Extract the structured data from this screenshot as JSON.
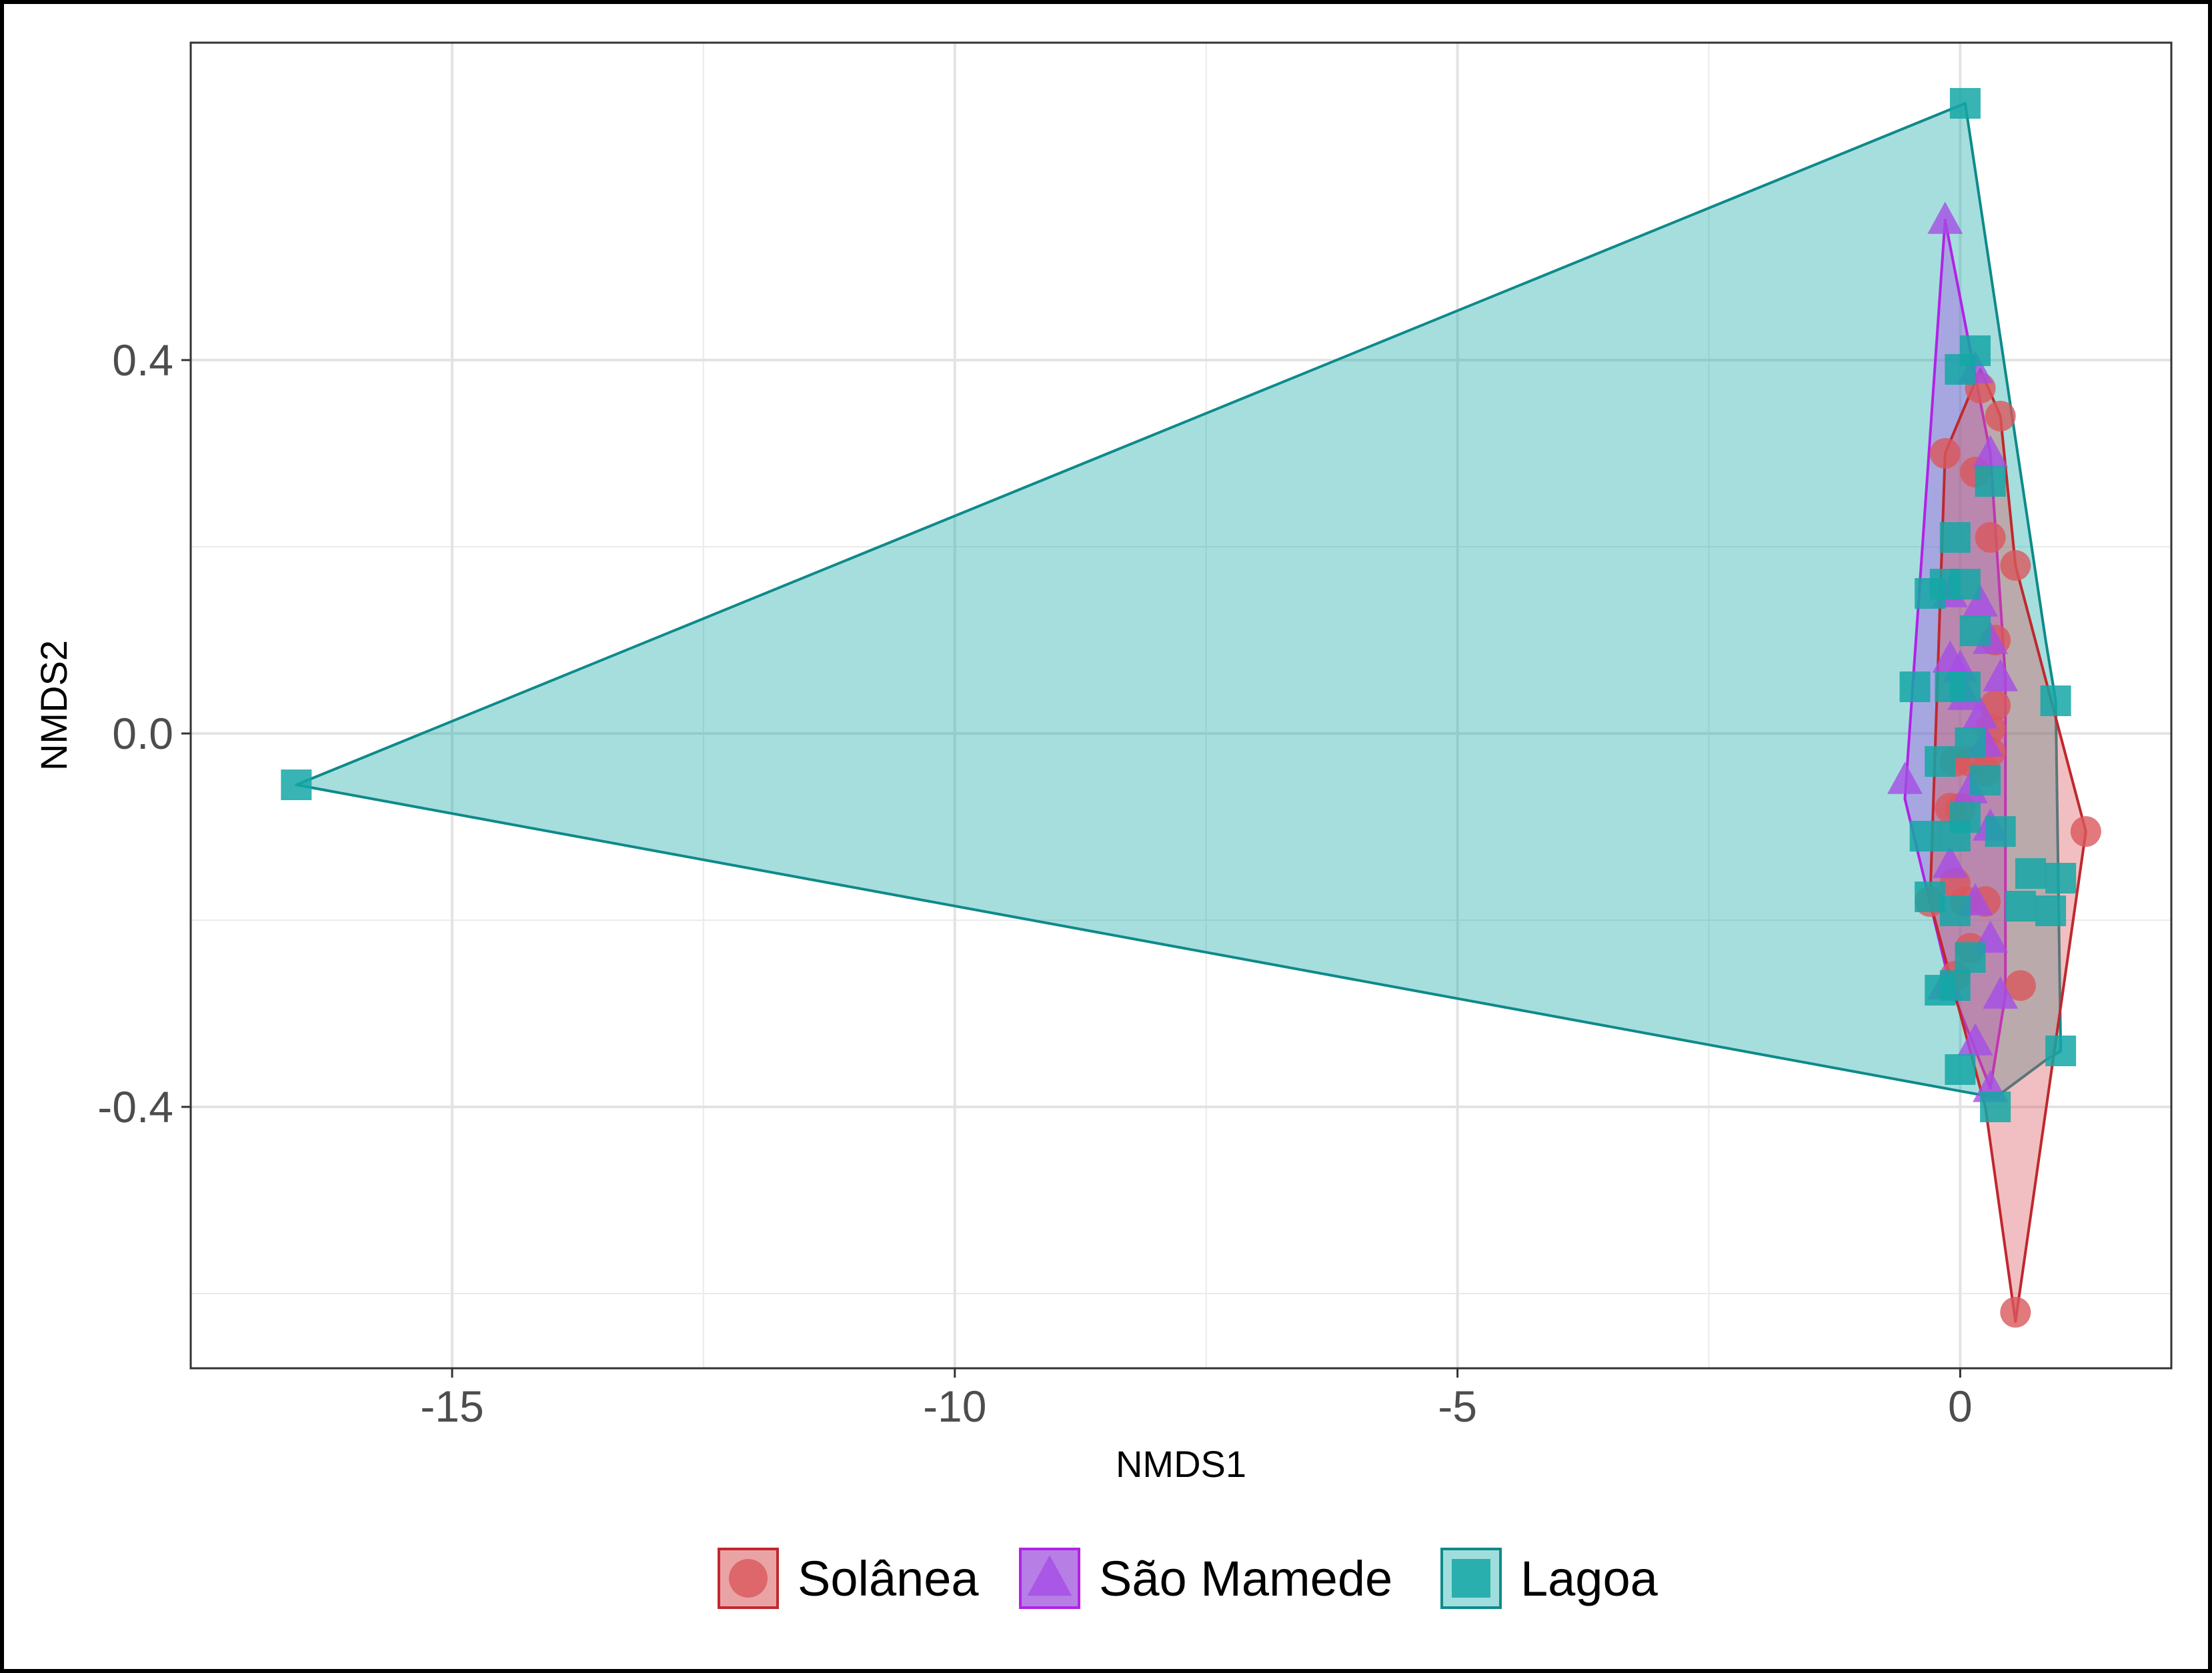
{
  "chart_data": {
    "type": "scatter",
    "title": "",
    "xlabel": "NMDS1",
    "ylabel": "NMDS2",
    "xlim": [
      -17.6,
      2.1
    ],
    "ylim": [
      -0.68,
      0.74
    ],
    "x_ticks": [
      -15,
      -10,
      -5,
      0
    ],
    "x_tick_labels": [
      "-15",
      "-10",
      "-5",
      "0"
    ],
    "x_minor": [
      -12.5,
      -7.5,
      -2.5
    ],
    "y_ticks": [
      0.4,
      0.0,
      -0.4
    ],
    "y_tick_labels": [
      "0.4",
      "0.0",
      "-0.4"
    ],
    "y_minor": [
      0.2,
      -0.2,
      -0.6
    ],
    "grid": true,
    "legend_position": "bottom",
    "series": [
      {
        "name": "Solânea",
        "shape": "circle",
        "color": "#d9585d",
        "stroke": "#c0282e",
        "fill": "#eaa3a5",
        "points": [
          [
            0.55,
            -0.62
          ],
          [
            1.25,
            -0.105
          ],
          [
            0.55,
            0.18
          ],
          [
            0.4,
            0.34
          ],
          [
            0.2,
            0.37
          ],
          [
            -0.15,
            0.3
          ],
          [
            0.15,
            0.28
          ],
          [
            0.3,
            0.21
          ],
          [
            0.35,
            0.1
          ],
          [
            0.35,
            0.03
          ],
          [
            0.3,
            0.005
          ],
          [
            0.1,
            -0.03
          ],
          [
            -0.05,
            -0.03
          ],
          [
            0.25,
            -0.04
          ],
          [
            0.0,
            -0.08
          ],
          [
            -0.1,
            -0.08
          ],
          [
            0.3,
            -0.02
          ],
          [
            -0.05,
            -0.16
          ],
          [
            0.05,
            -0.18
          ],
          [
            -0.3,
            -0.18
          ],
          [
            0.25,
            -0.18
          ],
          [
            0.1,
            -0.23
          ],
          [
            0.6,
            -0.27
          ],
          [
            -0.05,
            -0.26
          ]
        ]
      },
      {
        "name": "São Mamede",
        "shape": "triangle",
        "color": "#a54ee6",
        "stroke": "#b222e6",
        "fill": "#b77fe6",
        "points": [
          [
            -0.15,
            0.55
          ],
          [
            0.15,
            0.39
          ],
          [
            0.3,
            0.3
          ],
          [
            -0.1,
            0.15
          ],
          [
            0.2,
            0.14
          ],
          [
            0.3,
            0.1
          ],
          [
            -0.1,
            0.08
          ],
          [
            0.0,
            0.07
          ],
          [
            0.4,
            0.06
          ],
          [
            0.05,
            0.04
          ],
          [
            0.2,
            0.02
          ],
          [
            0.25,
            -0.01
          ],
          [
            -0.55,
            -0.05
          ],
          [
            0.1,
            -0.06
          ],
          [
            0.3,
            -0.1
          ],
          [
            -0.1,
            -0.14
          ],
          [
            0.15,
            -0.18
          ],
          [
            0.3,
            -0.22
          ],
          [
            -0.15,
            -0.27
          ],
          [
            0.4,
            -0.28
          ],
          [
            0.15,
            -0.33
          ],
          [
            0.3,
            -0.38
          ]
        ]
      },
      {
        "name": "Lagoa",
        "shape": "square",
        "color": "#14a7a6",
        "stroke": "#0e8a8a",
        "fill": "#a0dedd",
        "points": [
          [
            -16.55,
            -0.055
          ],
          [
            0.05,
            0.675
          ],
          [
            0.15,
            0.41
          ],
          [
            0.0,
            0.39
          ],
          [
            0.3,
            0.27
          ],
          [
            -0.05,
            0.21
          ],
          [
            -0.15,
            0.16
          ],
          [
            0.05,
            0.16
          ],
          [
            -0.3,
            0.15
          ],
          [
            0.15,
            0.11
          ],
          [
            -0.1,
            0.05
          ],
          [
            0.05,
            0.05
          ],
          [
            -0.45,
            0.05
          ],
          [
            0.95,
            0.035
          ],
          [
            0.1,
            -0.01
          ],
          [
            -0.2,
            -0.03
          ],
          [
            0.25,
            -0.05
          ],
          [
            0.05,
            -0.09
          ],
          [
            -0.05,
            -0.11
          ],
          [
            0.4,
            -0.105
          ],
          [
            -0.35,
            -0.11
          ],
          [
            0.7,
            -0.15
          ],
          [
            1.0,
            -0.155
          ],
          [
            0.6,
            -0.185
          ],
          [
            0.9,
            -0.19
          ],
          [
            -0.05,
            -0.19
          ],
          [
            -0.3,
            -0.175
          ],
          [
            0.1,
            -0.24
          ],
          [
            -0.05,
            -0.27
          ],
          [
            -0.2,
            -0.275
          ],
          [
            1.0,
            -0.34
          ],
          [
            0.0,
            -0.36
          ],
          [
            0.35,
            -0.4
          ]
        ]
      }
    ],
    "hulls": [
      {
        "series": "Lagoa",
        "points": [
          [
            0.05,
            0.675
          ],
          [
            -16.55,
            -0.055
          ],
          [
            0.35,
            -0.39
          ],
          [
            0.85,
            -0.35
          ],
          [
            1.0,
            -0.34
          ],
          [
            0.95,
            0.035
          ],
          [
            0.85,
            0.1
          ]
        ]
      },
      {
        "series": "São Mamede",
        "points": [
          [
            -0.15,
            0.55
          ],
          [
            -0.55,
            -0.07
          ],
          [
            -0.1,
            -0.27
          ],
          [
            0.3,
            -0.38
          ],
          [
            0.45,
            -0.28
          ],
          [
            0.45,
            0.06
          ],
          [
            0.3,
            0.3
          ]
        ]
      },
      {
        "series": "Solânea",
        "points": [
          [
            0.2,
            0.39
          ],
          [
            0.4,
            0.34
          ],
          [
            0.55,
            0.18
          ],
          [
            1.25,
            -0.105
          ],
          [
            0.55,
            -0.63
          ],
          [
            0.25,
            -0.4
          ],
          [
            -0.3,
            -0.18
          ],
          [
            -0.15,
            0.3
          ]
        ]
      }
    ],
    "hull_order": [
      "Lagoa",
      "São Mamede",
      "Solânea"
    ]
  }
}
